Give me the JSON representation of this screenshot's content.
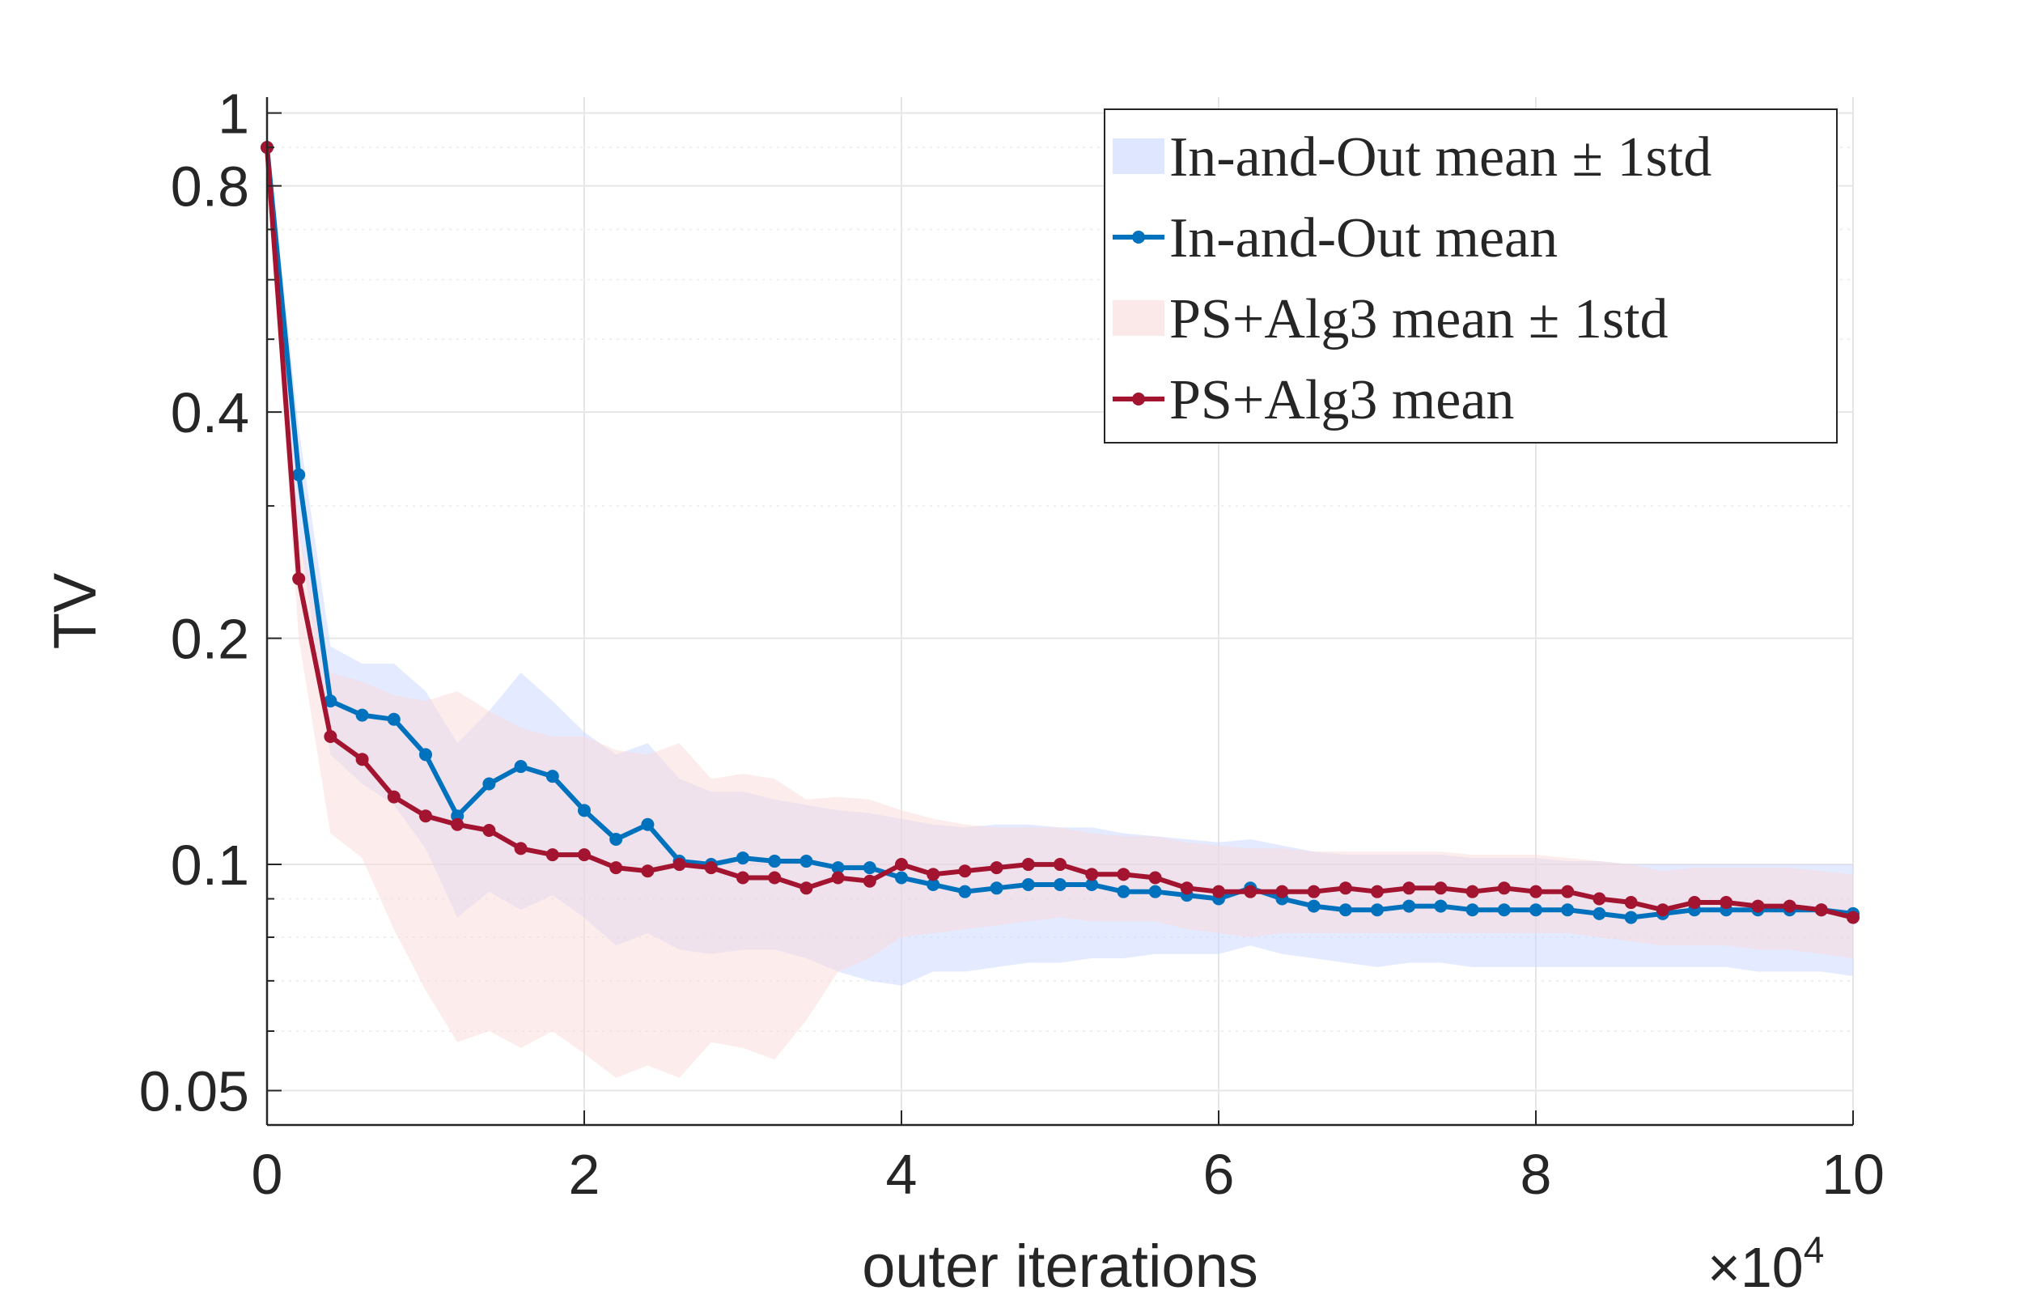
{
  "chart_data": {
    "type": "line",
    "title": "",
    "xlabel": "outer iterations",
    "x_exponent_label": "×10",
    "x_exponent": "4",
    "ylabel": "TV",
    "yscale": "log",
    "xlim": [
      0,
      10
    ],
    "ylim": [
      0.045,
      1.05
    ],
    "xticks": [
      0,
      2,
      4,
      6,
      8,
      10
    ],
    "xtick_labels": [
      "0",
      "2",
      "4",
      "6",
      "8",
      "10"
    ],
    "yticks": [
      0.05,
      0.1,
      0.2,
      0.4,
      0.8,
      1
    ],
    "ytick_labels": [
      "0.05",
      "0.1",
      "0.2",
      "0.4",
      "0.8",
      "1"
    ],
    "grid": true,
    "legend_position": "top-right",
    "x": [
      0,
      0.2,
      0.4,
      0.6,
      0.8,
      1.0,
      1.2,
      1.4,
      1.6,
      1.8,
      2.0,
      2.2,
      2.4,
      2.6,
      2.8,
      3.0,
      3.2,
      3.4,
      3.6,
      3.8,
      4.0,
      4.2,
      4.4,
      4.6,
      4.8,
      5.0,
      5.2,
      5.4,
      5.6,
      5.8,
      6.0,
      6.2,
      6.4,
      6.6,
      6.8,
      7.0,
      7.2,
      7.4,
      7.6,
      7.8,
      8.0,
      8.2,
      8.4,
      8.6,
      8.8,
      9.0,
      9.2,
      9.4,
      9.6,
      9.8,
      10.0
    ],
    "series": [
      {
        "name": "In-and-Out mean",
        "band_name": "In-and-Out mean ± 1std",
        "color": "#0072bd",
        "band_color": "#c9d6ff",
        "values": [
          0.9,
          0.33,
          0.165,
          0.158,
          0.156,
          0.14,
          0.116,
          0.128,
          0.135,
          0.131,
          0.118,
          0.108,
          0.113,
          0.101,
          0.1,
          0.102,
          0.101,
          0.101,
          0.099,
          0.099,
          0.096,
          0.094,
          0.092,
          0.093,
          0.094,
          0.094,
          0.094,
          0.092,
          0.092,
          0.091,
          0.09,
          0.093,
          0.09,
          0.088,
          0.087,
          0.087,
          0.088,
          0.088,
          0.087,
          0.087,
          0.087,
          0.087,
          0.086,
          0.085,
          0.086,
          0.087,
          0.087,
          0.087,
          0.087,
          0.087,
          0.086
        ],
        "upper": [
          0.95,
          0.38,
          0.195,
          0.185,
          0.185,
          0.17,
          0.145,
          0.16,
          0.18,
          0.165,
          0.15,
          0.14,
          0.145,
          0.13,
          0.125,
          0.125,
          0.122,
          0.12,
          0.118,
          0.117,
          0.115,
          0.113,
          0.112,
          0.113,
          0.113,
          0.112,
          0.112,
          0.11,
          0.109,
          0.108,
          0.107,
          0.108,
          0.106,
          0.104,
          0.103,
          0.103,
          0.103,
          0.103,
          0.102,
          0.102,
          0.102,
          0.101,
          0.101,
          0.1,
          0.1,
          0.1,
          0.1,
          0.1,
          0.1,
          0.1,
          0.1
        ],
        "lower": [
          0.85,
          0.28,
          0.14,
          0.128,
          0.12,
          0.105,
          0.085,
          0.092,
          0.087,
          0.091,
          0.085,
          0.078,
          0.081,
          0.077,
          0.076,
          0.077,
          0.077,
          0.075,
          0.072,
          0.07,
          0.069,
          0.072,
          0.072,
          0.073,
          0.074,
          0.074,
          0.075,
          0.075,
          0.076,
          0.076,
          0.076,
          0.078,
          0.076,
          0.075,
          0.074,
          0.073,
          0.074,
          0.074,
          0.073,
          0.073,
          0.073,
          0.073,
          0.073,
          0.073,
          0.073,
          0.073,
          0.073,
          0.072,
          0.072,
          0.072,
          0.071
        ]
      },
      {
        "name": "PS+Alg3 mean",
        "band_name": "PS+Alg3 mean ± 1std",
        "color": "#a2142f",
        "band_color": "#f9d9d9",
        "values": [
          0.9,
          0.24,
          0.148,
          0.138,
          0.123,
          0.116,
          0.113,
          0.111,
          0.105,
          0.103,
          0.103,
          0.099,
          0.098,
          0.1,
          0.099,
          0.096,
          0.096,
          0.093,
          0.096,
          0.095,
          0.1,
          0.097,
          0.098,
          0.099,
          0.1,
          0.1,
          0.097,
          0.097,
          0.096,
          0.093,
          0.092,
          0.092,
          0.092,
          0.092,
          0.093,
          0.092,
          0.093,
          0.093,
          0.092,
          0.093,
          0.092,
          0.092,
          0.09,
          0.089,
          0.087,
          0.089,
          0.089,
          0.088,
          0.088,
          0.087,
          0.085
        ],
        "upper": [
          0.95,
          0.28,
          0.18,
          0.175,
          0.168,
          0.165,
          0.17,
          0.16,
          0.152,
          0.148,
          0.148,
          0.142,
          0.14,
          0.145,
          0.13,
          0.132,
          0.13,
          0.122,
          0.123,
          0.122,
          0.118,
          0.115,
          0.113,
          0.112,
          0.112,
          0.112,
          0.11,
          0.109,
          0.109,
          0.107,
          0.106,
          0.105,
          0.105,
          0.104,
          0.104,
          0.104,
          0.104,
          0.104,
          0.103,
          0.103,
          0.103,
          0.102,
          0.101,
          0.1,
          0.098,
          0.099,
          0.099,
          0.099,
          0.099,
          0.098,
          0.097
        ],
        "lower": [
          0.85,
          0.2,
          0.11,
          0.102,
          0.082,
          0.068,
          0.058,
          0.06,
          0.057,
          0.06,
          0.056,
          0.052,
          0.054,
          0.052,
          0.058,
          0.057,
          0.055,
          0.062,
          0.072,
          0.075,
          0.08,
          0.081,
          0.082,
          0.083,
          0.084,
          0.085,
          0.084,
          0.084,
          0.084,
          0.082,
          0.081,
          0.08,
          0.081,
          0.081,
          0.081,
          0.081,
          0.081,
          0.081,
          0.081,
          0.081,
          0.081,
          0.081,
          0.08,
          0.079,
          0.078,
          0.078,
          0.078,
          0.077,
          0.077,
          0.076,
          0.075
        ]
      }
    ],
    "legend": [
      {
        "label": "In-and-Out mean ± 1std",
        "kind": "band",
        "series": 0
      },
      {
        "label": "In-and-Out mean",
        "kind": "line",
        "series": 0
      },
      {
        "label": "PS+Alg3 mean ± 1std",
        "kind": "band",
        "series": 1
      },
      {
        "label": "PS+Alg3 mean",
        "kind": "line",
        "series": 1
      }
    ]
  }
}
